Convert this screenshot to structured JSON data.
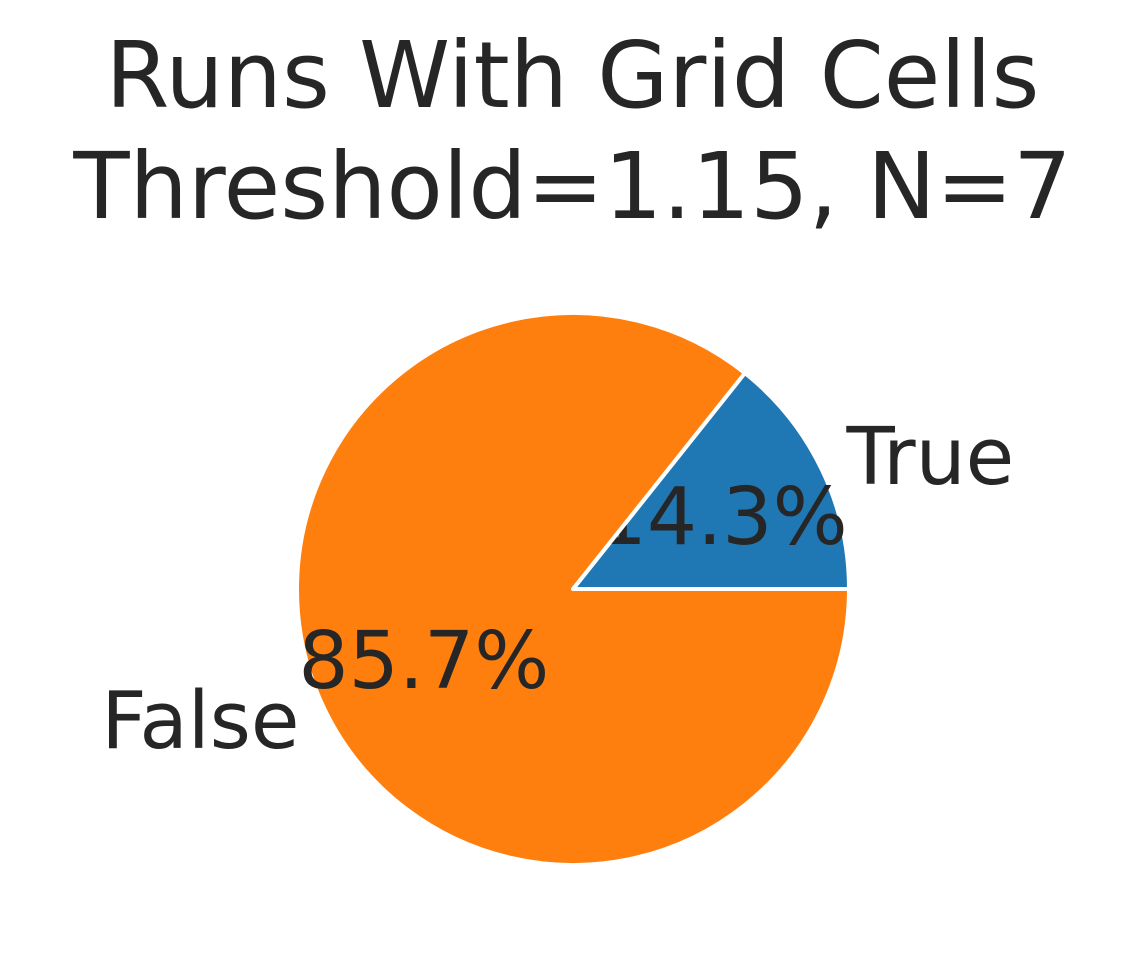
{
  "chart_data": {
    "type": "pie",
    "title_lines": [
      "Runs With Grid Cells",
      "Threshold=1.15, N=7"
    ],
    "slices": [
      {
        "label": "True",
        "value": 14.3,
        "pct_label": "14.3%",
        "color": "#1f77b4"
      },
      {
        "label": "False",
        "value": 85.7,
        "pct_label": "85.7%",
        "color": "#ff7f0e"
      }
    ],
    "start_angle_deg": 0,
    "direction": "counterclockwise",
    "edge_color": "#ffffff"
  }
}
